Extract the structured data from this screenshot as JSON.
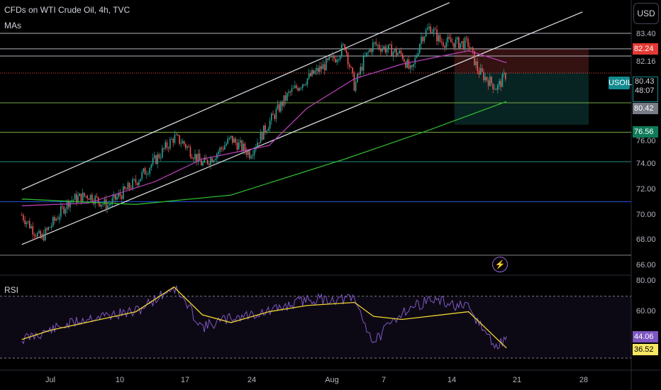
{
  "header": {
    "title": "CFDs on WTI Crude Oil, 4h, TVC",
    "indicator": "MAs",
    "currency_button": "USD"
  },
  "rsi_panel": {
    "title": "RSI",
    "ticks": [
      "80.00",
      "60.00"
    ],
    "value_rsi": "44.06",
    "value_ma": "36.52"
  },
  "price_axis": {
    "ticks": [
      "83.40",
      "82.16",
      "76.00",
      "74.00",
      "72.00",
      "70.00",
      "68.00",
      "66.00"
    ],
    "tag_red": "82.24",
    "tag_green": "76.56",
    "symbol": "USOIL",
    "current_price": "80.43",
    "countdown": "48:07",
    "tag_gray": "80.42"
  },
  "time_axis": {
    "ticks": [
      "Jul",
      "10",
      "17",
      "24",
      "Aug",
      "7",
      "14",
      "21",
      "28"
    ]
  },
  "colors": {
    "up": "#26a69a",
    "down": "#ef5350",
    "ma_fast": "#b33fb3",
    "ma_slow": "#2fb82f",
    "rsi": "#7e57c2",
    "rsi_ma": "#f0d431",
    "channel": "#e0e3eb"
  },
  "chart_data": {
    "type": "candlestick",
    "title": "CFDs on WTI Crude Oil, 4h, TVC",
    "ylim": [
      65.5,
      85.8
    ],
    "x_range": [
      "Jun 28",
      "Aug 31"
    ],
    "price_path": [
      {
        "x": "Jun 28",
        "price": 69.8
      },
      {
        "x": "Jun 30",
        "price": 68.0
      },
      {
        "x": "Jul 3",
        "price": 70.9
      },
      {
        "x": "Jul 5",
        "price": 71.3
      },
      {
        "x": "Jul 7",
        "price": 70.5
      },
      {
        "x": "Jul 10",
        "price": 72.3
      },
      {
        "x": "Jul 12",
        "price": 73.9
      },
      {
        "x": "Jul 14",
        "price": 75.6
      },
      {
        "x": "Jul 15",
        "price": 75.2
      },
      {
        "x": "Jul 17",
        "price": 73.6
      },
      {
        "x": "Jul 18",
        "price": 74.1
      },
      {
        "x": "Jul 20",
        "price": 75.5
      },
      {
        "x": "Jul 22",
        "price": 74.4
      },
      {
        "x": "Jul 24",
        "price": 76.7
      },
      {
        "x": "Jul 26",
        "price": 78.8
      },
      {
        "x": "Jul 28",
        "price": 80.0
      },
      {
        "x": "Jul 31",
        "price": 81.6
      },
      {
        "x": "Aug 1",
        "price": 82.5
      },
      {
        "x": "Aug 2",
        "price": 79.4
      },
      {
        "x": "Aug 3",
        "price": 81.4
      },
      {
        "x": "Aug 4",
        "price": 82.6
      },
      {
        "x": "Aug 7",
        "price": 81.8
      },
      {
        "x": "Aug 8",
        "price": 80.4
      },
      {
        "x": "Aug 9",
        "price": 83.1
      },
      {
        "x": "Aug 10",
        "price": 83.9
      },
      {
        "x": "Aug 11",
        "price": 82.8
      },
      {
        "x": "Aug 14",
        "price": 82.6
      },
      {
        "x": "Aug 15",
        "price": 80.6
      },
      {
        "x": "Aug 17",
        "price": 79.3
      },
      {
        "x": "Aug 18",
        "price": 80.4
      }
    ],
    "ma_fast": [
      {
        "x": "Jun 28",
        "price": 70.5
      },
      {
        "x": "Jul 5",
        "price": 70.7
      },
      {
        "x": "Jul 12",
        "price": 72.3
      },
      {
        "x": "Jul 17",
        "price": 74.0
      },
      {
        "x": "Jul 24",
        "price": 75.0
      },
      {
        "x": "Jul 28",
        "price": 77.8
      },
      {
        "x": "Aug 2",
        "price": 80.0
      },
      {
        "x": "Aug 7",
        "price": 81.1
      },
      {
        "x": "Aug 14",
        "price": 82.1
      },
      {
        "x": "Aug 18",
        "price": 81.2
      }
    ],
    "ma_slow": [
      {
        "x": "Jun 28",
        "price": 71.0
      },
      {
        "x": "Jul 10",
        "price": 70.6
      },
      {
        "x": "Jul 20",
        "price": 71.3
      },
      {
        "x": "Aug 1",
        "price": 74.0
      },
      {
        "x": "Aug 10",
        "price": 76.2
      },
      {
        "x": "Aug 18",
        "price": 78.3
      }
    ],
    "channel_upper": [
      {
        "x": "Jun 28",
        "price": 71.7
      },
      {
        "x": "Aug 12",
        "price": 85.7
      }
    ],
    "channel_lower": [
      {
        "x": "Jun 28",
        "price": 67.6
      },
      {
        "x": "Aug 26",
        "price": 85.0
      }
    ],
    "horizontal_levels": [
      {
        "price": 83.4,
        "color": "#d1d4dc"
      },
      {
        "price": 82.24,
        "color": "#d1d4dc"
      },
      {
        "price": 81.7,
        "color": "#d1d4dc"
      },
      {
        "price": 78.2,
        "color": "#8bc34a"
      },
      {
        "price": 76.0,
        "color": "#8bc34a"
      },
      {
        "price": 73.8,
        "color": "#26a69a"
      },
      {
        "price": 70.8,
        "color": "#2962ff"
      },
      {
        "price": 66.8,
        "color": "#9e9e9e"
      }
    ],
    "position": {
      "entry": 80.43,
      "stop": 82.24,
      "target": 76.56,
      "from": "Aug 14",
      "to": "Aug 31"
    },
    "rsi": {
      "ylim": [
        25,
        85
      ],
      "levels": [
        70,
        30
      ],
      "values": [
        {
          "x": "Jun 28",
          "rsi": 42
        },
        {
          "x": "Jul 1",
          "rsi": 48
        },
        {
          "x": "Jul 5",
          "rsi": 56
        },
        {
          "x": "Jul 10",
          "rsi": 60
        },
        {
          "x": "Jul 14",
          "rsi": 76
        },
        {
          "x": "Jul 17",
          "rsi": 50
        },
        {
          "x": "Jul 20",
          "rsi": 56
        },
        {
          "x": "Jul 24",
          "rsi": 60
        },
        {
          "x": "Jul 28",
          "rsi": 68
        },
        {
          "x": "Aug 2",
          "rsi": 68
        },
        {
          "x": "Aug 4",
          "rsi": 40
        },
        {
          "x": "Aug 7",
          "rsi": 60
        },
        {
          "x": "Aug 10",
          "rsi": 68
        },
        {
          "x": "Aug 14",
          "rsi": 62
        },
        {
          "x": "Aug 17",
          "rsi": 36
        },
        {
          "x": "Aug 18",
          "rsi": 44.06
        }
      ],
      "ma_values": [
        {
          "x": "Jun 28",
          "rsi": 42
        },
        {
          "x": "Jul 1",
          "rsi": 48
        },
        {
          "x": "Jul 10",
          "rsi": 60
        },
        {
          "x": "Jul 14",
          "rsi": 76
        },
        {
          "x": "Jul 17",
          "rsi": 58
        },
        {
          "x": "Jul 20",
          "rsi": 53
        },
        {
          "x": "Jul 24",
          "rsi": 60
        },
        {
          "x": "Jul 28",
          "rsi": 64
        },
        {
          "x": "Aug 2",
          "rsi": 66
        },
        {
          "x": "Aug 4",
          "rsi": 57
        },
        {
          "x": "Aug 7",
          "rsi": 55
        },
        {
          "x": "Aug 14",
          "rsi": 60
        },
        {
          "x": "Aug 18",
          "rsi": 36.52
        }
      ]
    }
  }
}
